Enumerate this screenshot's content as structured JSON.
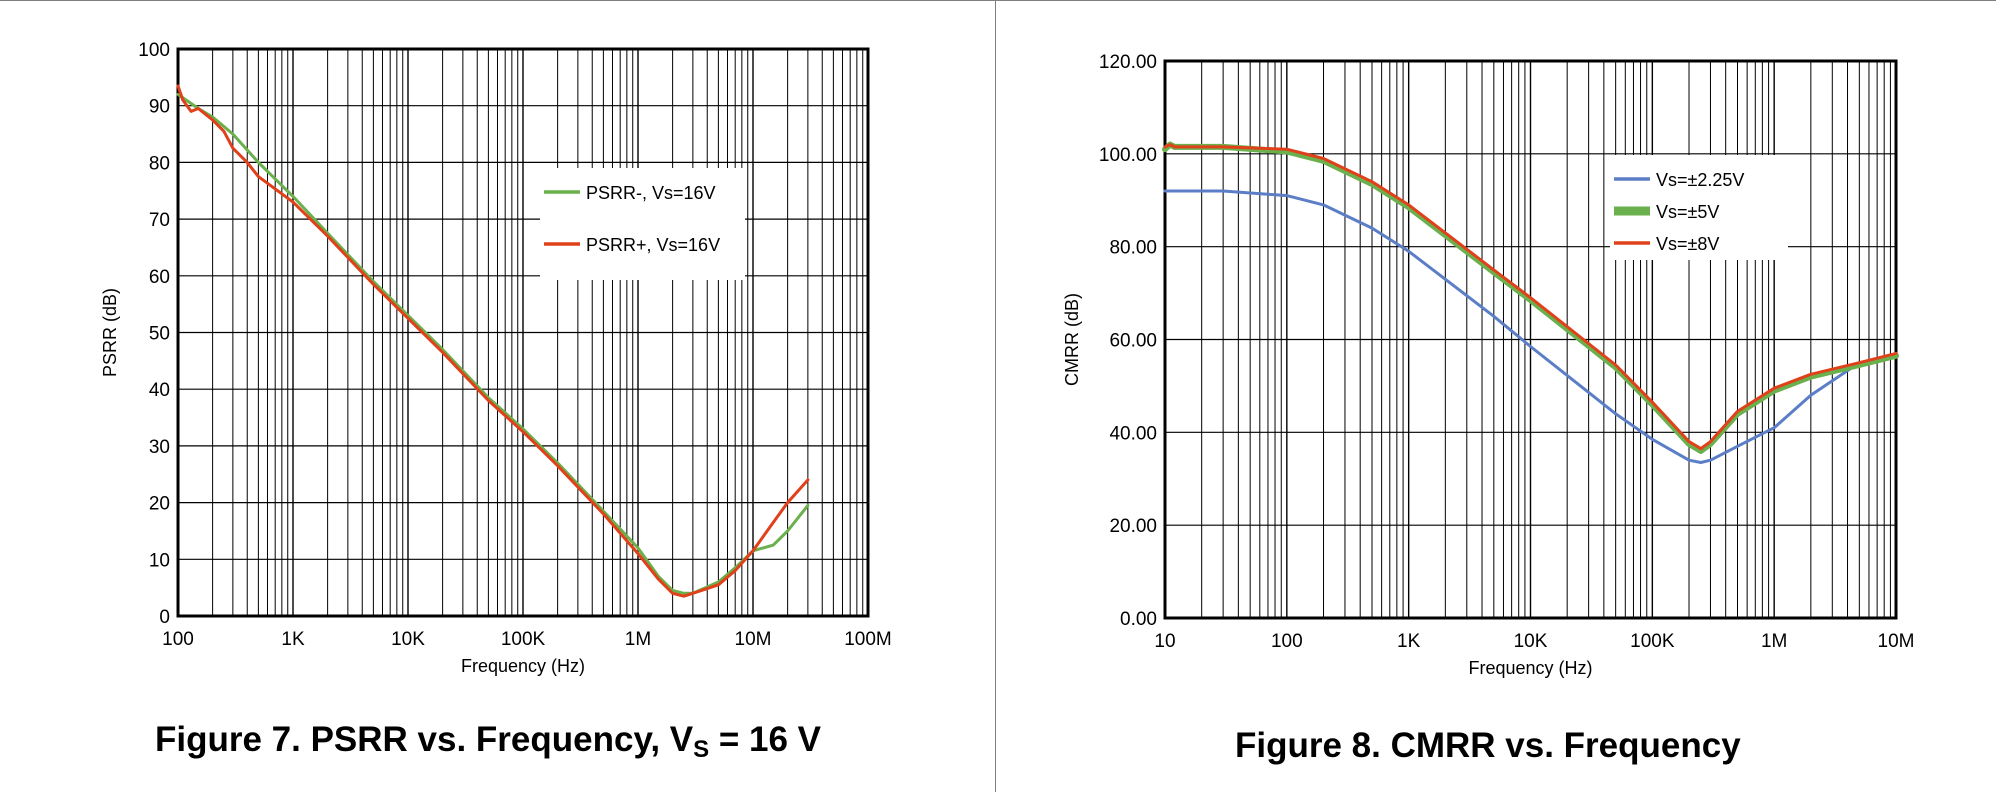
{
  "colors": {
    "green": "#6ab04c",
    "red": "#e0401a",
    "blue": "#5b7ec6"
  },
  "chart_data": [
    {
      "type": "line",
      "xscale": "log",
      "xlim": [
        100,
        100000000
      ],
      "ylim": [
        0,
        100
      ],
      "xlabel": "Frequency (Hz)",
      "ylabel": "PSRR (dB)",
      "xticks": [
        "100",
        "1K",
        "10K",
        "100K",
        "1M",
        "10M",
        "100M"
      ],
      "yticks": [
        "0",
        "10",
        "20",
        "30",
        "40",
        "50",
        "60",
        "70",
        "80",
        "90",
        "100"
      ],
      "grid": true,
      "legend": "upper-right",
      "caption": {
        "main": "Figure 7. PSRR vs. Frequency, V",
        "sub": "S",
        "tail": " = 16 V"
      },
      "series": [
        {
          "name": "PSRR-, Vs=16V",
          "color": "#6ab04c",
          "x": [
            100,
            150,
            200,
            300,
            500,
            1000,
            2000,
            5000,
            10000,
            20000,
            50000,
            100000,
            200000,
            500000,
            1000000,
            1500000,
            2000000,
            2500000,
            3000000,
            5000000,
            7000000,
            10000000,
            15000000,
            20000000,
            30000000
          ],
          "y": [
            92,
            89.5,
            88,
            85,
            80,
            74,
            67.5,
            59,
            53,
            47,
            38.5,
            33,
            27,
            18.5,
            12,
            7,
            4.5,
            4,
            4,
            6,
            8.5,
            11.5,
            12.5,
            15,
            19.5
          ]
        },
        {
          "name": "PSRR+, Vs=16V",
          "color": "#e0401a",
          "x": [
            100,
            110,
            130,
            150,
            200,
            250,
            300,
            400,
            500,
            1000,
            2000,
            5000,
            10000,
            20000,
            50000,
            100000,
            200000,
            500000,
            1000000,
            1500000,
            2000000,
            2500000,
            3000000,
            5000000,
            7000000,
            10000000,
            15000000,
            20000000,
            30000000
          ],
          "y": [
            93.5,
            91,
            89,
            89.5,
            87.5,
            85.5,
            82.5,
            80,
            77.5,
            73,
            67,
            58.5,
            52.5,
            46.5,
            38,
            32.5,
            26.5,
            18,
            11,
            6.5,
            4,
            3.5,
            4,
            5.5,
            8,
            11.5,
            16.5,
            20,
            24
          ]
        }
      ]
    },
    {
      "type": "line",
      "xscale": "log",
      "xlim": [
        10,
        10000000
      ],
      "ylim": [
        0,
        120
      ],
      "xlabel": "Frequency (Hz)",
      "ylabel": "CMRR (dB)",
      "xticks": [
        "10",
        "100",
        "1K",
        "10K",
        "100K",
        "1M",
        "10M"
      ],
      "yticks": [
        "0.00",
        "20.00",
        "40.00",
        "60.00",
        "80.00",
        "100.00",
        "120.00"
      ],
      "grid": true,
      "legend": "upper-right",
      "caption": {
        "main": "Figure 8. CMRR vs. Frequency"
      },
      "series": [
        {
          "name": "Vs=±2.25V",
          "color": "#5b7ec6",
          "x": [
            10,
            30,
            100,
            200,
            500,
            1000,
            5000,
            10000,
            50000,
            100000,
            200000,
            250000,
            300000,
            500000,
            1000000,
            2000000,
            5000000,
            10000000
          ],
          "y": [
            92,
            92,
            91,
            89,
            84,
            79,
            65,
            58.5,
            44,
            38.5,
            34,
            33.5,
            34,
            37,
            41,
            48,
            55,
            56.5
          ]
        },
        {
          "name": "Vs=±5V",
          "color": "#6ab04c",
          "x": [
            10,
            11,
            12,
            30,
            100,
            200,
            500,
            1000,
            5000,
            10000,
            50000,
            100000,
            200000,
            250000,
            300000,
            500000,
            1000000,
            2000000,
            5000000,
            10000000
          ],
          "y": [
            101,
            102,
            101.5,
            101.5,
            100.5,
            98.5,
            93.5,
            88.5,
            74.5,
            68.5,
            54,
            46,
            37.5,
            36,
            37.5,
            44,
            49,
            52,
            54.5,
            56.5
          ]
        },
        {
          "name": "Vs=±8V",
          "color": "#e0401a",
          "x": [
            10,
            11,
            12,
            30,
            100,
            200,
            500,
            1000,
            5000,
            10000,
            50000,
            100000,
            200000,
            250000,
            300000,
            500000,
            1000000,
            2000000,
            5000000,
            10000000
          ],
          "y": [
            101.5,
            102,
            101.5,
            101.5,
            101,
            99,
            94,
            89,
            75,
            69,
            54.5,
            46.5,
            38,
            36.5,
            38,
            44.5,
            49.5,
            52.5,
            55,
            57
          ]
        }
      ]
    }
  ]
}
